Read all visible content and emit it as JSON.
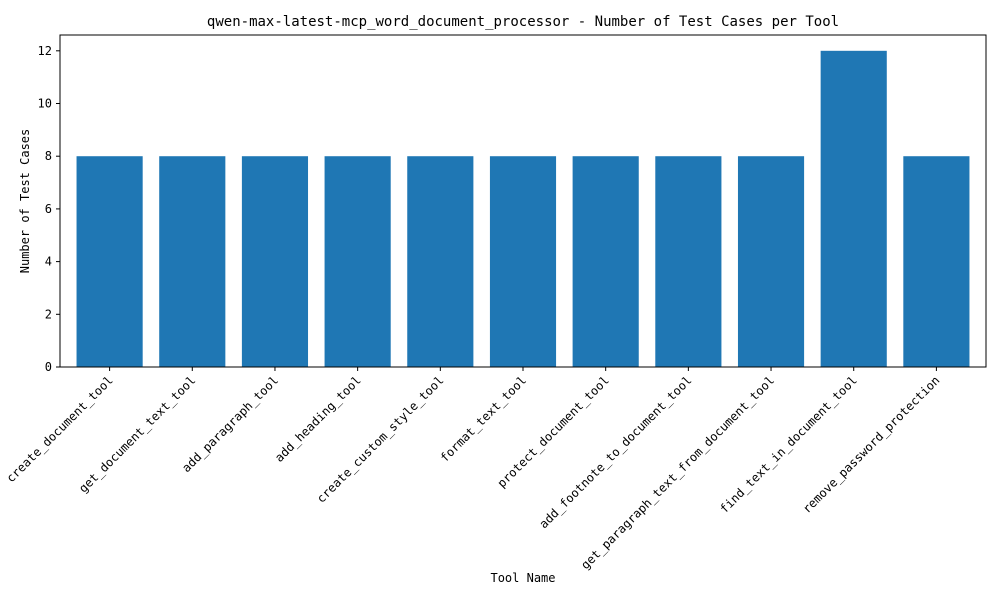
{
  "chart_data": {
    "type": "bar",
    "title": "qwen-max-latest-mcp_word_document_processor - Number of Test Cases per Tool",
    "xlabel": "Tool Name",
    "ylabel": "Number of Test Cases",
    "categories": [
      "create_document_tool",
      "get_document_text_tool",
      "add_paragraph_tool",
      "add_heading_tool",
      "create_custom_style_tool",
      "format_text_tool",
      "protect_document_tool",
      "add_footnote_to_document_tool",
      "get_paragraph_text_from_document_tool",
      "find_text_in_document_tool",
      "remove_password_protection"
    ],
    "values": [
      8,
      8,
      8,
      8,
      8,
      8,
      8,
      8,
      8,
      12,
      8
    ],
    "ylim": [
      0,
      12.6
    ],
    "yticks": [
      0,
      2,
      4,
      6,
      8,
      10,
      12
    ],
    "bar_color": "#1f77b4",
    "grid": false,
    "legend": false
  }
}
